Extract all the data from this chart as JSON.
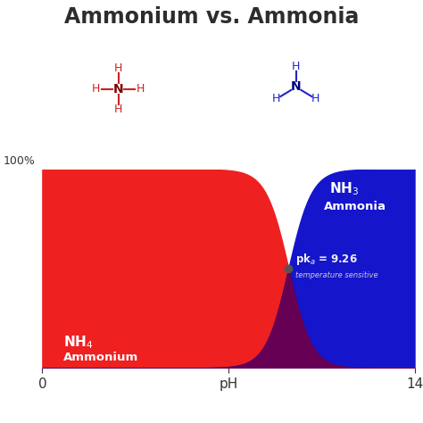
{
  "title": "Ammonium vs. Ammonia",
  "title_fontsize": 17,
  "title_color": "#2d2d2d",
  "pka": 9.26,
  "ph_min": 0,
  "ph_max": 14,
  "red_color": "#ee2020",
  "blue_color": "#1515cc",
  "purple_color": "#660055",
  "bg_color": "#ffffff",
  "nh4_label_line1": "NH₄",
  "nh4_label_line2": "Ammonium",
  "nh3_label_line1": "NH₃",
  "nh3_label_line2": "Ammonia",
  "pka_text": "pkₐ = 9.26",
  "temp_label": "temperature sensitive",
  "xlabel": "pH",
  "tick_100": "100%",
  "tick_0_ph": "0",
  "tick_14_ph": "14",
  "red_struct_color": "#cc2222",
  "blue_struct_color": "#2222cc",
  "dark_red": "#8B0000",
  "dark_blue": "#00008B"
}
